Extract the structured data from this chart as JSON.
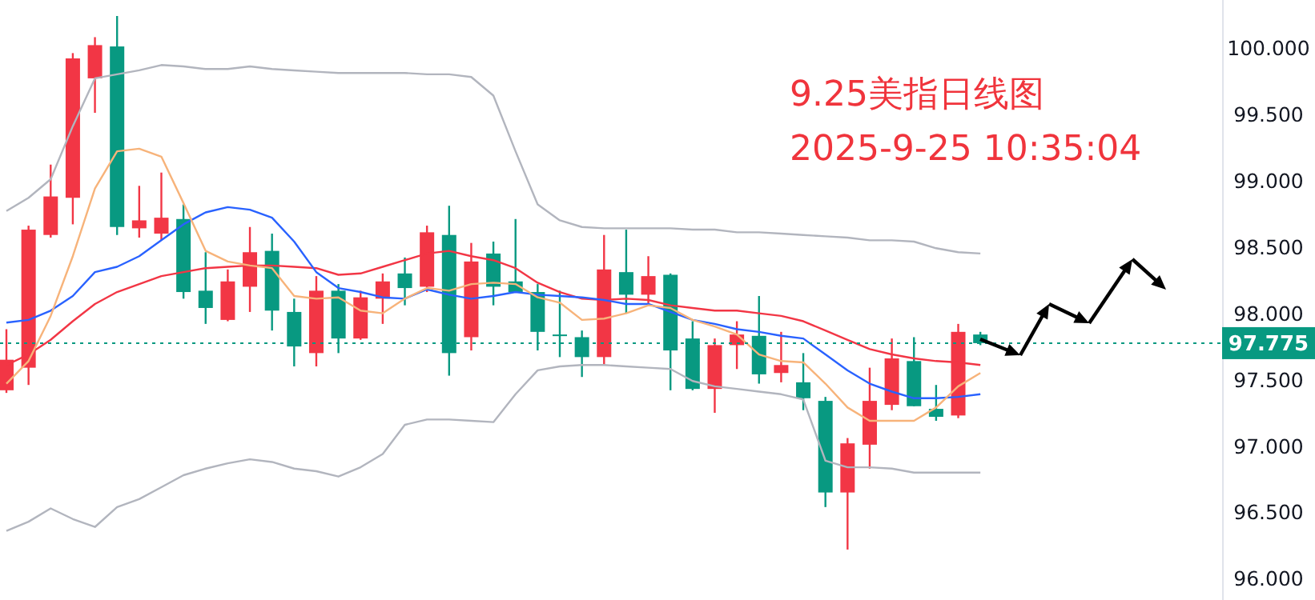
{
  "chart_data": {
    "type": "candlestick",
    "title": "9.25美指日线图",
    "subtitle": "2025-9-25 10:35:04",
    "categories": [
      null,
      null,
      null,
      null,
      null,
      null,
      null,
      null,
      null,
      null,
      null,
      null,
      null,
      null,
      null,
      null,
      null,
      null,
      null,
      null,
      null,
      null,
      null,
      null,
      null,
      null,
      null,
      null,
      null,
      null,
      null,
      null,
      null,
      null,
      null,
      null,
      null,
      null,
      null,
      null,
      null,
      null,
      null,
      null,
      null
    ],
    "ohlc": [
      [
        97.42,
        97.88,
        97.4,
        97.65
      ],
      [
        97.59,
        98.66,
        97.46,
        98.63
      ],
      [
        98.59,
        99.12,
        98.57,
        98.88
      ],
      [
        98.87,
        99.96,
        98.67,
        99.92
      ],
      [
        99.77,
        100.08,
        99.51,
        100.02
      ],
      [
        100.01,
        100.24,
        98.59,
        98.65
      ],
      [
        98.64,
        98.96,
        98.57,
        98.7
      ],
      [
        98.6,
        99.06,
        98.55,
        98.72
      ],
      [
        98.71,
        98.82,
        98.11,
        98.16
      ],
      [
        98.17,
        98.46,
        97.92,
        98.04
      ],
      [
        97.95,
        98.33,
        97.94,
        98.24
      ],
      [
        98.2,
        98.65,
        98.01,
        98.46
      ],
      [
        98.47,
        98.6,
        97.87,
        98.02
      ],
      [
        98.01,
        98.11,
        97.6,
        97.75
      ],
      [
        97.7,
        98.28,
        97.6,
        98.17
      ],
      [
        98.17,
        98.22,
        97.7,
        97.81
      ],
      [
        97.81,
        98.17,
        97.8,
        98.12
      ],
      [
        98.11,
        98.3,
        97.92,
        98.24
      ],
      [
        98.3,
        98.42,
        98.06,
        98.19
      ],
      [
        98.2,
        98.66,
        98.16,
        98.61
      ],
      [
        98.59,
        98.81,
        97.53,
        97.7
      ],
      [
        97.82,
        98.53,
        97.72,
        98.39
      ],
      [
        98.45,
        98.54,
        98.06,
        98.2
      ],
      [
        98.24,
        98.71,
        98.16,
        98.16
      ],
      [
        98.16,
        98.22,
        97.72,
        97.86
      ],
      [
        97.84,
        98.17,
        97.67,
        97.83
      ],
      [
        97.82,
        97.87,
        97.52,
        97.67
      ],
      [
        97.67,
        98.59,
        97.61,
        98.33
      ],
      [
        98.31,
        98.63,
        98.0,
        98.14
      ],
      [
        98.14,
        98.43,
        98.07,
        98.28
      ],
      [
        98.29,
        98.3,
        97.42,
        97.72
      ],
      [
        97.81,
        97.94,
        97.42,
        97.43
      ],
      [
        97.43,
        97.81,
        97.25,
        97.76
      ],
      [
        97.76,
        97.94,
        97.58,
        97.84
      ],
      [
        97.83,
        98.13,
        97.47,
        97.54
      ],
      [
        97.55,
        97.86,
        97.48,
        97.61
      ],
      [
        97.48,
        97.7,
        97.27,
        97.36
      ],
      [
        97.34,
        97.37,
        96.54,
        96.65
      ],
      [
        96.65,
        97.06,
        96.22,
        97.02
      ],
      [
        97.01,
        97.59,
        96.83,
        97.34
      ],
      [
        97.31,
        97.81,
        97.27,
        97.66
      ],
      [
        97.64,
        97.82,
        97.3,
        97.3
      ],
      [
        97.28,
        97.46,
        97.19,
        97.22
      ],
      [
        97.23,
        97.92,
        97.21,
        97.86
      ],
      [
        97.84,
        97.86,
        97.76,
        97.775
      ]
    ],
    "colors": [
      "#f23645",
      "#f23645",
      "#f23645",
      "#f23645",
      "#f23645",
      "#089981",
      "#f23645",
      "#f23645",
      "#089981",
      "#089981",
      "#f23645",
      "#f23645",
      "#089981",
      "#089981",
      "#f23645",
      "#089981",
      "#f23645",
      "#f23645",
      "#089981",
      "#f23645",
      "#089981",
      "#f23645",
      "#089981",
      "#089981",
      "#089981",
      "#089981",
      "#089981",
      "#f23645",
      "#089981",
      "#f23645",
      "#089981",
      "#089981",
      "#f23645",
      "#f23645",
      "#089981",
      "#f23645",
      "#089981",
      "#089981",
      "#f23645",
      "#f23645",
      "#f23645",
      "#089981",
      "#089981",
      "#f23645",
      "#089981"
    ],
    "series": [
      {
        "type": "line",
        "color": "#b2b5be",
        "values": [
          98.77,
          98.87,
          99.01,
          99.41,
          99.77,
          99.8,
          99.83,
          99.87,
          99.86,
          99.84,
          99.84,
          99.86,
          99.84,
          99.83,
          99.82,
          99.81,
          99.81,
          99.81,
          99.81,
          99.8,
          99.8,
          99.78,
          99.64,
          99.22,
          98.82,
          98.7,
          98.65,
          98.64,
          98.64,
          98.64,
          98.64,
          98.63,
          98.63,
          98.61,
          98.61,
          98.6,
          98.59,
          98.58,
          98.57,
          98.55,
          98.55,
          98.54,
          98.49,
          98.46,
          98.45
        ]
      },
      {
        "type": "line",
        "color": "#b2b5be",
        "values": [
          96.36,
          96.43,
          96.53,
          96.45,
          96.39,
          96.54,
          96.6,
          96.69,
          96.78,
          96.83,
          96.87,
          96.9,
          96.88,
          96.83,
          96.81,
          96.77,
          96.84,
          96.94,
          97.16,
          97.2,
          97.2,
          97.19,
          97.18,
          97.39,
          97.57,
          97.6,
          97.61,
          97.61,
          97.6,
          97.59,
          97.58,
          97.49,
          97.45,
          97.43,
          97.41,
          97.39,
          97.35,
          96.89,
          96.84,
          96.84,
          96.83,
          96.8,
          96.8,
          96.8,
          96.8
        ]
      },
      {
        "type": "line",
        "color": "#f23645",
        "values": [
          97.61,
          97.69,
          97.8,
          97.94,
          98.07,
          98.16,
          98.22,
          98.28,
          98.31,
          98.34,
          98.35,
          98.36,
          98.36,
          98.35,
          98.34,
          98.29,
          98.3,
          98.35,
          98.4,
          98.45,
          98.47,
          98.43,
          98.4,
          98.34,
          98.23,
          98.16,
          98.11,
          98.1,
          98.11,
          98.1,
          98.06,
          98.04,
          98.02,
          98.02,
          98.0,
          97.98,
          97.94,
          97.87,
          97.8,
          97.73,
          97.69,
          97.66,
          97.64,
          97.63,
          97.61
        ]
      },
      {
        "type": "line",
        "color": "#2962ff",
        "values": [
          97.93,
          97.95,
          98.02,
          98.13,
          98.31,
          98.35,
          98.43,
          98.55,
          98.67,
          98.76,
          98.8,
          98.78,
          98.72,
          98.54,
          98.31,
          98.19,
          98.16,
          98.12,
          98.11,
          98.18,
          98.14,
          98.11,
          98.13,
          98.16,
          98.14,
          98.13,
          98.12,
          98.1,
          98.07,
          98.07,
          98.01,
          97.95,
          97.92,
          97.88,
          97.86,
          97.83,
          97.81,
          97.69,
          97.57,
          97.47,
          97.41,
          97.36,
          97.36,
          97.37,
          97.39
        ]
      },
      {
        "type": "line",
        "color": "#f7b37a",
        "values": [
          97.47,
          97.64,
          97.98,
          98.43,
          98.94,
          99.22,
          99.24,
          99.18,
          98.83,
          98.47,
          98.39,
          98.36,
          98.34,
          98.13,
          98.11,
          98.12,
          98.02,
          98.0,
          98.11,
          98.19,
          98.17,
          98.22,
          98.23,
          98.22,
          98.12,
          98.08,
          97.95,
          97.96,
          98.0,
          98.06,
          98.04,
          97.95,
          97.9,
          97.84,
          97.69,
          97.64,
          97.63,
          97.47,
          97.29,
          97.19,
          97.19,
          97.19,
          97.29,
          97.45,
          97.55
        ]
      }
    ],
    "ylim": [
      95.84,
      100.36
    ],
    "yticks": [
      {
        "value": 96,
        "label": "96.000"
      },
      {
        "value": 96.5,
        "label": "96.500"
      },
      {
        "value": 97,
        "label": "97.000"
      },
      {
        "value": 97.5,
        "label": "97.500"
      },
      {
        "value": 98,
        "label": "98.000"
      },
      {
        "value": 98.5,
        "label": "98.500"
      },
      {
        "value": 99,
        "label": "99.000"
      },
      {
        "value": 99.5,
        "label": "99.500"
      },
      {
        "value": 100,
        "label": "100.000"
      }
    ],
    "tick_labels": "y",
    "ref_lines": [
      {
        "axis": "y",
        "value": 97.775,
        "label": "97.775",
        "color": "#089981",
        "line_style": "dotted"
      }
    ]
  }
}
